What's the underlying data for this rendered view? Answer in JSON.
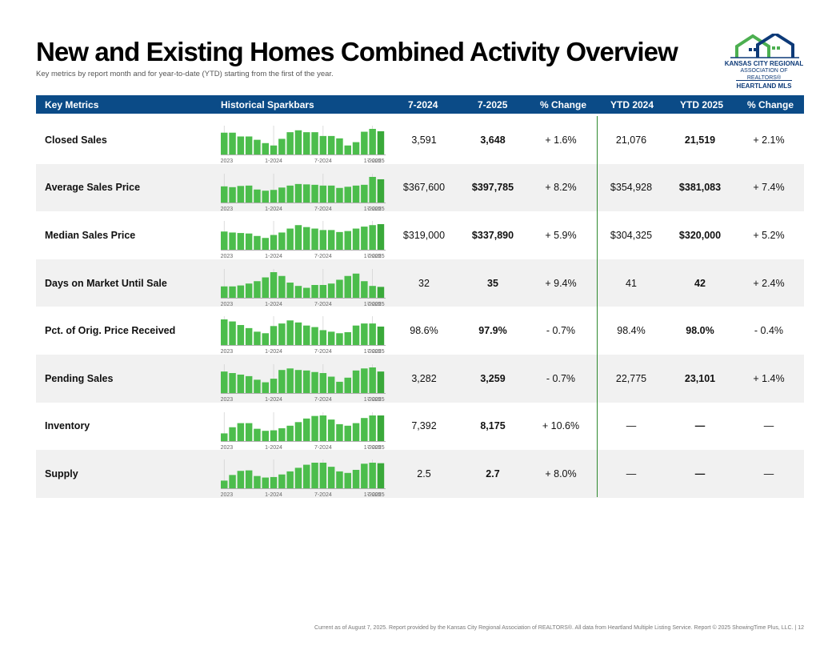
{
  "title": "New and Existing Homes Combined Activity Overview",
  "subtitle": "Key metrics by report month and for year-to-date (YTD) starting from the first of the year.",
  "logo": {
    "line1": "KANSAS CITY REGIONAL",
    "line2": "ASSOCIATION OF REALTORS®",
    "line3": "HEARTLAND MLS",
    "colors": {
      "green": "#4caf50",
      "navy": "#0d3a78"
    }
  },
  "header": {
    "metrics": "Key Metrics",
    "sparkbars": "Historical Sparkbars",
    "m2024": "7-2024",
    "m2025": "7-2025",
    "change": "% Change",
    "ytd2024": "YTD 2024",
    "ytd2025": "YTD 2025",
    "ytd_change": "% Change"
  },
  "colors": {
    "header_bg": "#0b4b87",
    "bar": "#4cbd4c",
    "bar_last": "#3aa93a",
    "divider": "#2e8a2e"
  },
  "spark_labels": [
    "7-2023",
    "1-2024",
    "7-2024",
    "1-2025",
    "7-2025"
  ],
  "rows": [
    {
      "metric": "Closed Sales",
      "m2024": "3,591",
      "m2025": "3,648",
      "change": "+ 1.6%",
      "ytd2024": "21,076",
      "ytd2025": "21,519",
      "ytd_change": "+ 2.1%",
      "spark": [
        0.92,
        0.92,
        0.76,
        0.76,
        0.62,
        0.48,
        0.38,
        0.66,
        0.94,
        1.02,
        0.94,
        0.94,
        0.78,
        0.78,
        0.68,
        0.38,
        0.52,
        0.96,
        1.08,
        0.98
      ]
    },
    {
      "metric": "Average Sales Price",
      "m2024": "$367,600",
      "m2025": "$397,785",
      "change": "+ 8.2%",
      "ytd2024": "$354,928",
      "ytd2025": "$381,083",
      "ytd_change": "+ 7.4%",
      "spark": [
        0.82,
        0.78,
        0.84,
        0.86,
        0.66,
        0.6,
        0.64,
        0.76,
        0.86,
        0.94,
        0.92,
        0.9,
        0.86,
        0.86,
        0.74,
        0.8,
        0.86,
        0.9,
        1.3,
        1.18
      ]
    },
    {
      "metric": "Median Sales Price",
      "m2024": "$319,000",
      "m2025": "$337,890",
      "change": "+ 5.9%",
      "ytd2024": "$304,325",
      "ytd2025": "$320,000",
      "ytd_change": "+ 5.2%",
      "spark": [
        0.74,
        0.7,
        0.68,
        0.66,
        0.56,
        0.48,
        0.6,
        0.7,
        0.86,
        1.0,
        0.92,
        0.86,
        0.8,
        0.8,
        0.72,
        0.76,
        0.86,
        0.94,
        1.0,
        1.04
      ]
    },
    {
      "metric": "Days on Market Until Sale",
      "m2024": "32",
      "m2025": "35",
      "change": "+ 9.4%",
      "ytd2024": "41",
      "ytd2025": "42",
      "ytd_change": "+ 2.4%",
      "spark": [
        0.48,
        0.48,
        0.52,
        0.6,
        0.7,
        0.86,
        1.08,
        0.92,
        0.64,
        0.5,
        0.42,
        0.54,
        0.54,
        0.6,
        0.76,
        0.92,
        1.02,
        0.7,
        0.5,
        0.46
      ]
    },
    {
      "metric": "Pct. of Orig. Price Received",
      "m2024": "98.6%",
      "m2025": "97.9%",
      "change": "- 0.7%",
      "ytd2024": "98.4%",
      "ytd2025": "98.0%",
      "ytd_change": "- 0.4%",
      "spark": [
        1.0,
        0.92,
        0.78,
        0.66,
        0.52,
        0.46,
        0.74,
        0.84,
        0.96,
        0.88,
        0.76,
        0.7,
        0.58,
        0.52,
        0.46,
        0.5,
        0.76,
        0.84,
        0.84,
        0.72
      ]
    },
    {
      "metric": "Pending Sales",
      "m2024": "3,282",
      "m2025": "3,259",
      "change": "- 0.7%",
      "ytd2024": "22,775",
      "ytd2025": "23,101",
      "ytd_change": "+ 1.4%",
      "spark": [
        0.84,
        0.78,
        0.72,
        0.66,
        0.52,
        0.42,
        0.56,
        0.9,
        0.96,
        0.9,
        0.88,
        0.82,
        0.78,
        0.64,
        0.44,
        0.6,
        0.88,
        0.96,
        1.0,
        0.84
      ]
    },
    {
      "metric": "Inventory",
      "m2024": "7,392",
      "m2025": "8,175",
      "change": "+ 10.6%",
      "ytd2024": "—",
      "ytd2025": "—",
      "ytd_change": "—",
      "spark": [
        0.3,
        0.54,
        0.7,
        0.7,
        0.48,
        0.4,
        0.42,
        0.5,
        0.6,
        0.74,
        0.88,
        0.98,
        1.0,
        0.84,
        0.66,
        0.6,
        0.7,
        0.9,
        1.0,
        1.0
      ]
    },
    {
      "metric": "Supply",
      "m2024": "2.5",
      "m2025": "2.7",
      "change": "+ 8.0%",
      "ytd2024": "—",
      "ytd2025": "—",
      "ytd_change": "—",
      "spark": [
        0.3,
        0.52,
        0.68,
        0.7,
        0.48,
        0.42,
        0.44,
        0.54,
        0.66,
        0.8,
        0.92,
        1.0,
        1.0,
        0.84,
        0.66,
        0.6,
        0.72,
        0.96,
        1.0,
        0.98
      ]
    }
  ],
  "footer": "Current as of August 7, 2025. Report provided by the Kansas City Regional Association of REALTORS®. All data from Heartland Multiple Listing Service. Report © 2025 ShowingTime Plus, LLC. | 12"
}
